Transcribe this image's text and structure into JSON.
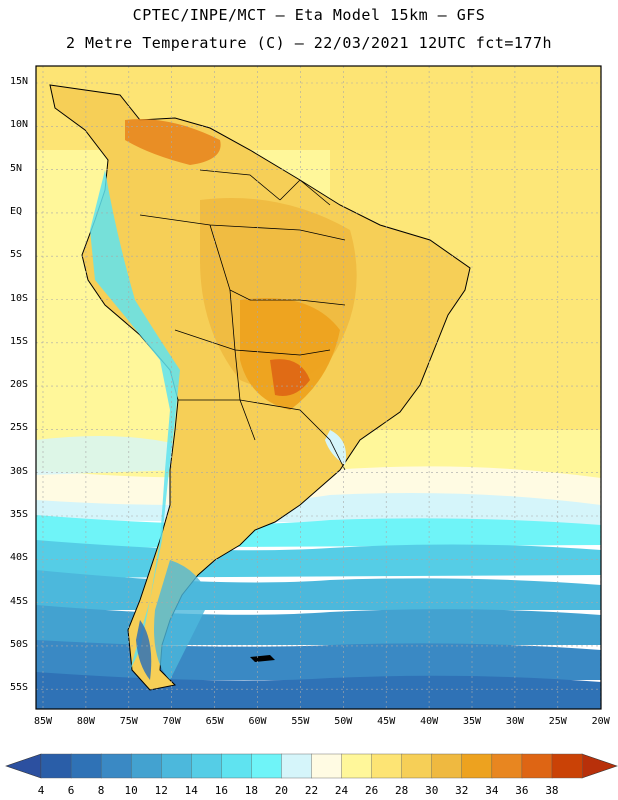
{
  "header": {
    "line1": "CPTEC/INPE/MCT –  Eta Model 15km – GFS",
    "line2": "2 Metre Temperature (C) – 22/03/2021 12UTC fct=177h"
  },
  "map": {
    "region": "South America",
    "lat_labels": [
      "15N",
      "10N",
      "5N",
      "EQ",
      "5S",
      "10S",
      "15S",
      "20S",
      "25S",
      "30S",
      "35S",
      "40S",
      "45S",
      "50S",
      "55S"
    ],
    "lon_labels": [
      "85W",
      "80W",
      "75W",
      "70W",
      "65W",
      "60W",
      "55W",
      "50W",
      "45W",
      "40W",
      "35W",
      "30W",
      "25W",
      "20W"
    ]
  },
  "colorbar": {
    "labels": [
      "4",
      "6",
      "8",
      "10",
      "12",
      "14",
      "16",
      "18",
      "20",
      "22",
      "24",
      "26",
      "28",
      "30",
      "32",
      "34",
      "36",
      "38"
    ],
    "colors": [
      "#2a5ea8",
      "#2f72b6",
      "#3a89c4",
      "#43a2d0",
      "#4cb8dc",
      "#55cde6",
      "#5fe3f0",
      "#6ff4f8",
      "#d5f5fa",
      "#fffbe3",
      "#fff79a",
      "#fde474",
      "#f6cf57",
      "#efb940",
      "#eda21f",
      "#e88620",
      "#de6514",
      "#ca4206"
    ],
    "low_color": "#2c50a0",
    "high_color": "#b8300a"
  }
}
